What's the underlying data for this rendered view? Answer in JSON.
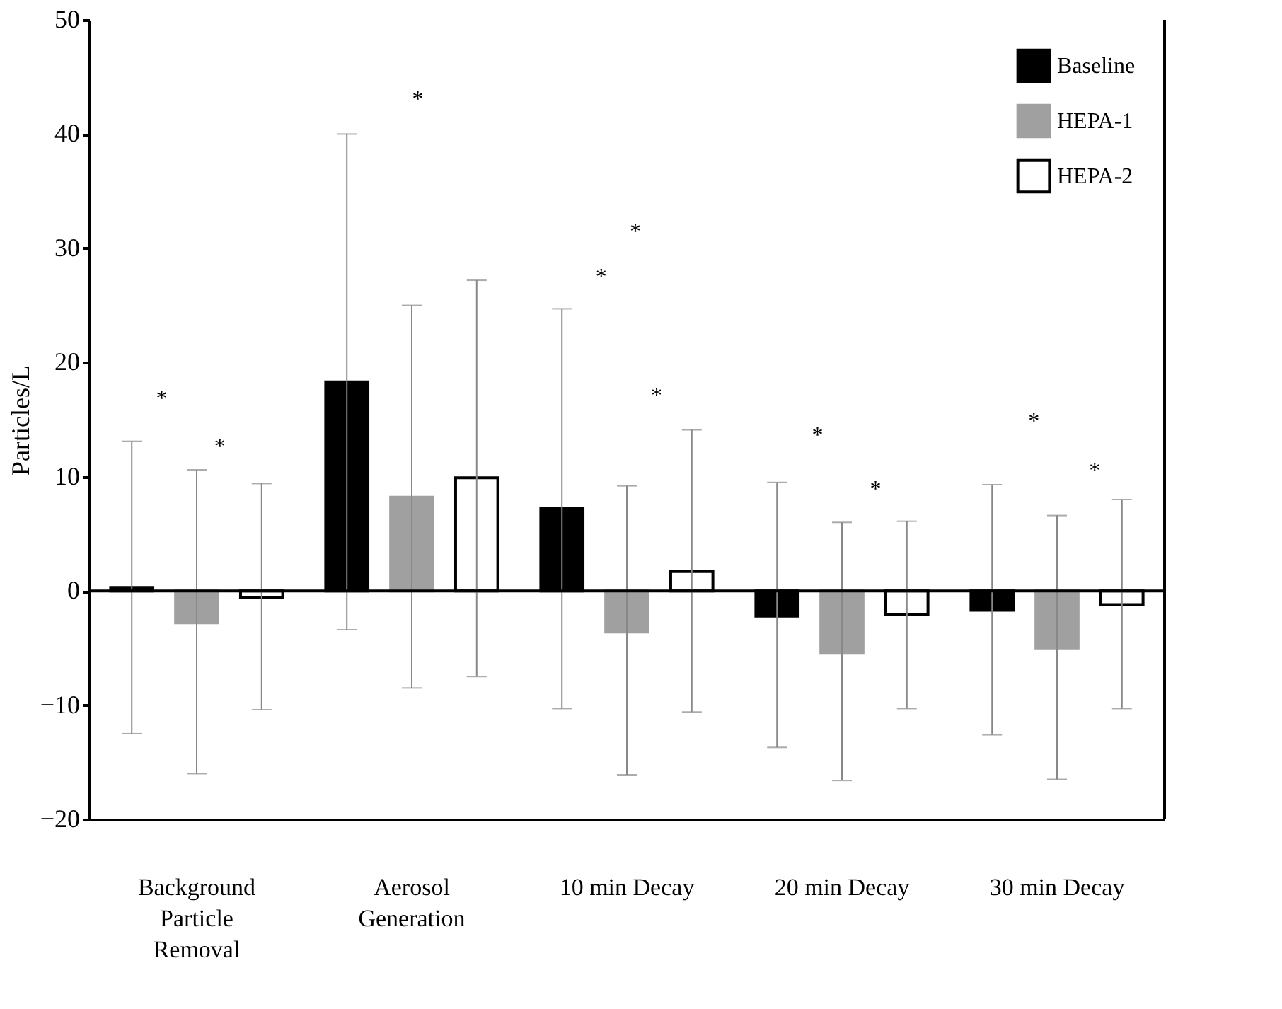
{
  "chart_data": {
    "type": "bar",
    "ylabel": "Particles/L",
    "categories": [
      "Background\nParticle\nRemoval",
      "Aerosol\nGeneration",
      "10 min Decay",
      "20 min Decay",
      "30 min Decay"
    ],
    "series": [
      {
        "name": "Baseline",
        "color": "#000000",
        "values": [
          0.3,
          18.3,
          7.2,
          -2.2,
          -1.7
        ],
        "errors": [
          [
            -12.5,
            13.1
          ],
          [
            -3.4,
            40
          ],
          [
            -10.3,
            24.7
          ],
          [
            -13.7,
            9.5
          ],
          [
            -12.6,
            9.3
          ]
        ]
      },
      {
        "name": "HEPA-1",
        "color": "#a0a0a0",
        "values": [
          -2.8,
          8.2,
          -3.6,
          -5.4,
          -5.0
        ],
        "errors": [
          [
            -16,
            10.6
          ],
          [
            -8.5,
            25
          ],
          [
            -16.1,
            9.2
          ],
          [
            -16.6,
            6
          ],
          [
            -16.5,
            6.6
          ]
        ]
      },
      {
        "name": "HEPA-2",
        "color": "#ffffff",
        "values": [
          -0.6,
          9.9,
          1.7,
          -2.1,
          -1.2
        ],
        "errors": [
          [
            -10.4,
            9.4
          ],
          [
            -7.5,
            27.2
          ],
          [
            -10.6,
            14.1
          ],
          [
            -10.3,
            6.1
          ],
          [
            -10.3,
            8
          ]
        ]
      }
    ],
    "ylim": [
      -20,
      50
    ],
    "yticks": [
      -20,
      -10,
      0,
      10,
      20,
      30,
      40,
      50
    ],
    "grid": false,
    "ref_lines": [
      {
        "axis": "y",
        "value": 0,
        "color": "#000000"
      }
    ],
    "legend": "top right",
    "annotations": [
      "*",
      "*",
      "*",
      "*",
      "*",
      "*",
      "*",
      "*",
      "*",
      "*"
    ]
  }
}
